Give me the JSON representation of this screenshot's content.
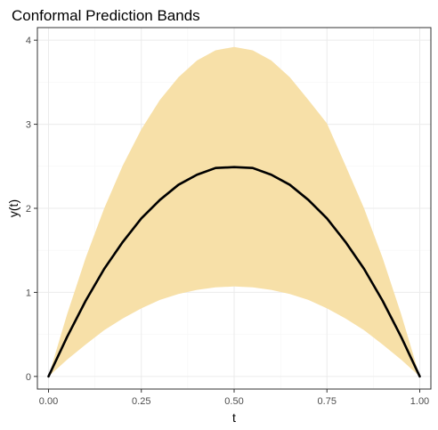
{
  "chart_data": {
    "type": "area",
    "title": "Conformal Prediction Bands",
    "xlabel": "t",
    "ylabel": "y(t)",
    "xlim": [
      -0.03,
      1.03
    ],
    "ylim": [
      -0.15,
      4.15
    ],
    "x_ticks": [
      0,
      0.25,
      0.5,
      0.75,
      1
    ],
    "x_tick_labels": [
      "0.00",
      "0.25",
      "0.50",
      "0.75",
      "1.00"
    ],
    "y_ticks": [
      0,
      1,
      2,
      3,
      4
    ],
    "y_tick_labels": [
      "0",
      "1",
      "2",
      "3",
      "4"
    ],
    "grid": true,
    "series": [
      {
        "kind": "band",
        "x": [
          0,
          0.05,
          0.1,
          0.15,
          0.2,
          0.25,
          0.3,
          0.35,
          0.4,
          0.45,
          0.5,
          0.55,
          0.6,
          0.65,
          0.7,
          0.75,
          0.8,
          0.85,
          0.9,
          0.95,
          1
        ],
        "lower": [
          0,
          0.2,
          0.38,
          0.55,
          0.69,
          0.81,
          0.91,
          0.98,
          1.03,
          1.06,
          1.07,
          1.06,
          1.03,
          0.98,
          0.91,
          0.81,
          0.69,
          0.55,
          0.38,
          0.2,
          0
        ],
        "upper": [
          0,
          0.74,
          1.41,
          2.0,
          2.51,
          2.94,
          3.29,
          3.56,
          3.76,
          3.88,
          3.92,
          3.88,
          3.76,
          3.56,
          3.29,
          3.01,
          2.51,
          2.0,
          1.41,
          0.74,
          0
        ],
        "color": "#f7e0a8"
      },
      {
        "kind": "line",
        "x": [
          0,
          0.05,
          0.1,
          0.15,
          0.2,
          0.25,
          0.3,
          0.35,
          0.4,
          0.45,
          0.5,
          0.55,
          0.6,
          0.65,
          0.7,
          0.75,
          0.8,
          0.85,
          0.9,
          0.95,
          1
        ],
        "y": [
          0,
          0.47,
          0.9,
          1.28,
          1.6,
          1.88,
          2.1,
          2.28,
          2.4,
          2.48,
          2.49,
          2.48,
          2.4,
          2.28,
          2.1,
          1.88,
          1.6,
          1.28,
          0.9,
          0.47,
          0
        ],
        "color": "#000000"
      }
    ],
    "colors": {
      "panel_border": "#333333",
      "grid_major": "#ebebeb",
      "grid_minor": "#f5f5f5"
    }
  }
}
